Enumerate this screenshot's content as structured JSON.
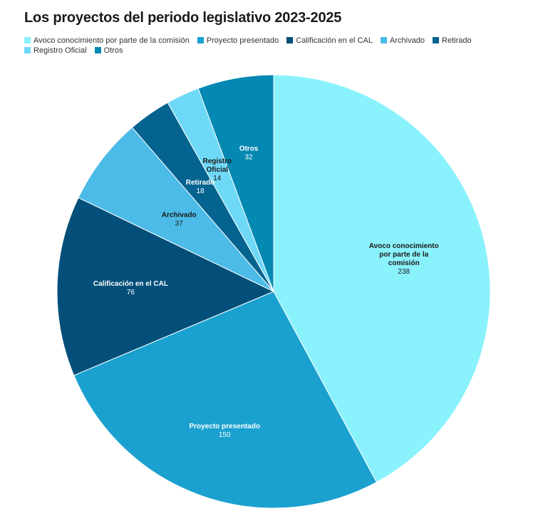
{
  "chart_data": {
    "type": "pie",
    "title": "Los proyectos del periodo legislativo 2023-2025",
    "legend_position": "top-left",
    "slices": [
      {
        "label": "Avoco conocimiento por parte de la comisión",
        "value": 238,
        "color": "#8af2fc",
        "label_lines": [
          "Avoco conocimiento",
          "por parte de la",
          "comisión"
        ],
        "text_color": "#1a1a1a"
      },
      {
        "label": "Proyecto presentado",
        "value": 150,
        "color": "#1aa1cf",
        "label_lines": [
          "Proyecto presentado"
        ],
        "text_color": "#ffffff"
      },
      {
        "label": "Calificación en el CAL",
        "value": 76,
        "color": "#034f79",
        "label_lines": [
          "Calificación en el CAL"
        ],
        "text_color": "#ffffff"
      },
      {
        "label": "Archivado",
        "value": 37,
        "color": "#4cbbe7",
        "label_lines": [
          "Archivado"
        ],
        "text_color": "#1a1a1a"
      },
      {
        "label": "Retirado",
        "value": 18,
        "color": "#04638f",
        "label_lines": [
          "Retirado"
        ],
        "text_color": "#ffffff"
      },
      {
        "label": "Registro Oficial",
        "value": 14,
        "color": "#6ed8f7",
        "label_lines": [
          "Registro",
          "Oficial"
        ],
        "text_color": "#1a1a1a"
      },
      {
        "label": "Otros",
        "value": 32,
        "color": "#0588b2",
        "label_lines": [
          "Otros"
        ],
        "text_color": "#ffffff"
      }
    ]
  }
}
